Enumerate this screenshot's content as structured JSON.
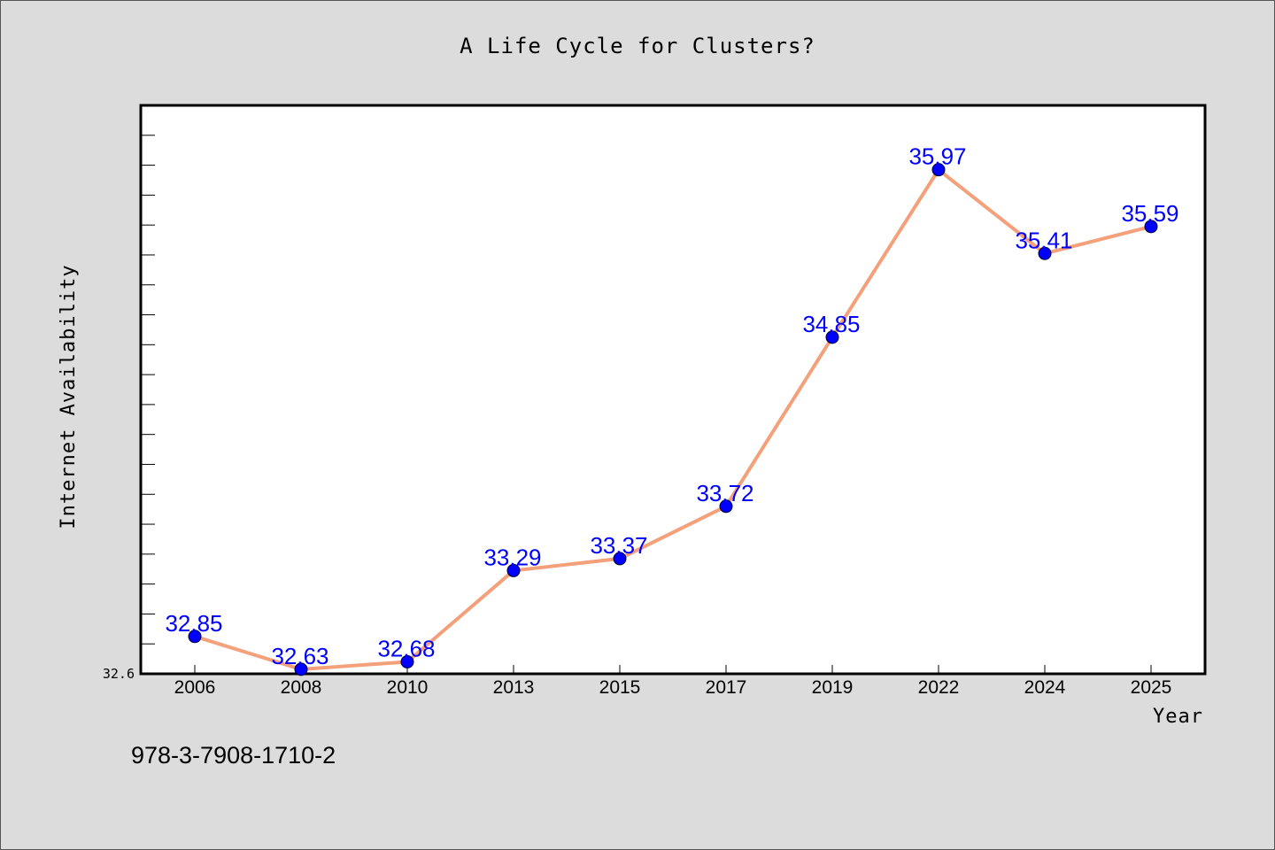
{
  "chart_data": {
    "type": "line",
    "title": "A Life Cycle for Clusters?",
    "xlabel": "Year",
    "ylabel": "Internet Availability",
    "categories": [
      "2006",
      "2008",
      "2010",
      "2013",
      "2015",
      "2017",
      "2019",
      "2022",
      "2024",
      "2025"
    ],
    "values": [
      32.85,
      32.63,
      32.68,
      33.29,
      33.37,
      33.72,
      34.85,
      35.97,
      35.41,
      35.59
    ],
    "value_labels": [
      "32.85",
      "32.63",
      "32.68",
      "33.29",
      "33.37",
      "33.72",
      "34.85",
      "35.97",
      "35.41",
      "35.59"
    ],
    "y_tick_label": "32.6",
    "ylim": [
      32.6,
      36.4
    ],
    "grid": false,
    "legend": "none",
    "colors": {
      "line": "#f4a07a",
      "marker": "#0000ff",
      "label": "#0000ff",
      "plot_background": "#ffffff",
      "figure_background": "#dcdcdc"
    }
  },
  "footer_text": "978-3-7908-1710-2"
}
